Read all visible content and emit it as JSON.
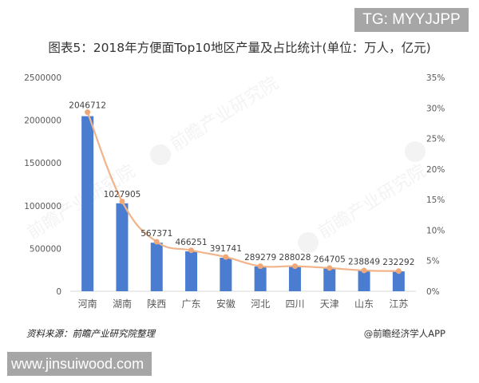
{
  "badges": {
    "top_right": "TG: MYYJJPP",
    "bottom_left": "www.jinsuiwood.com"
  },
  "footer": {
    "source": "资料来源：前瞻产业研究院整理",
    "credit": "@前瞻经济学人APP"
  },
  "watermark": "前瞻产业研究院",
  "colors": {
    "bar": "#4a7dd0",
    "line": "#f2b48a",
    "marker": "#f0a878",
    "axis_text": "#595959",
    "axis_line": "#d9d9d9"
  },
  "chart_data": {
    "type": "bar+line",
    "title": "图表5：2018年方便面Top10地区产量及占比统计(单位：万人，亿元)",
    "xlabel": "",
    "ylabel": "",
    "y2label": "",
    "categories": [
      "河南",
      "湖南",
      "陕西",
      "广东",
      "安徽",
      "河北",
      "四川",
      "天津",
      "山东",
      "江苏"
    ],
    "series": [
      {
        "name": "产量",
        "type": "bar",
        "axis": "left",
        "values": [
          2046712,
          1027905,
          567371,
          466251,
          391741,
          289279,
          288028,
          264705,
          238849,
          232292
        ],
        "labels": [
          "2046712",
          "1027905",
          "567371",
          "466251",
          "391741",
          "289279",
          "288028",
          "264705",
          "238849",
          "232292"
        ]
      },
      {
        "name": "占比",
        "type": "line",
        "axis": "right",
        "smooth": true,
        "values": [
          29.3,
          14.7,
          8.1,
          6.7,
          5.6,
          4.1,
          4.1,
          3.8,
          3.4,
          3.3
        ]
      }
    ],
    "ylim": [
      0,
      2500000
    ],
    "y_ticks": [
      "0",
      "500000",
      "1000000",
      "1500000",
      "2000000",
      "2500000"
    ],
    "y2lim": [
      0,
      35
    ],
    "y2_ticks": [
      "0%",
      "5%",
      "10%",
      "15%",
      "20%",
      "25%",
      "30%",
      "35%"
    ],
    "grid": false,
    "legend": "none"
  }
}
